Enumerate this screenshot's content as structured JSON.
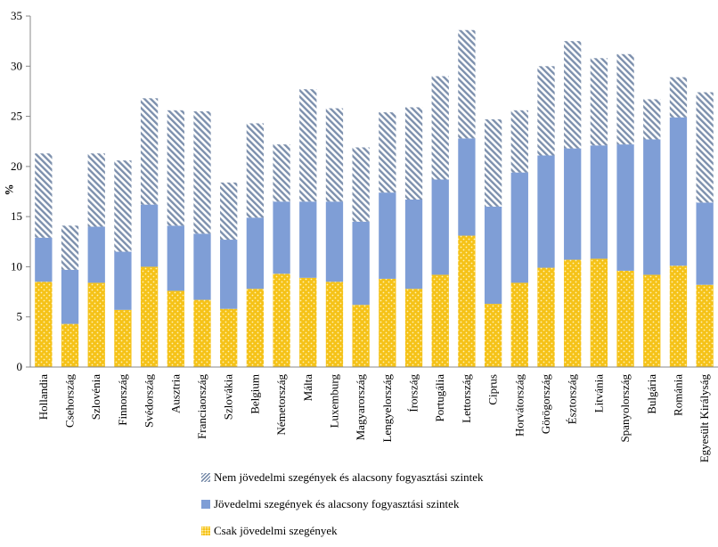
{
  "chart_data": {
    "type": "bar",
    "stacked": true,
    "title": "",
    "xlabel": "",
    "ylabel": "%",
    "ylim": [
      0,
      35
    ],
    "yticks": [
      0,
      5,
      10,
      15,
      20,
      25,
      30,
      35
    ],
    "grid": false,
    "legend_position": "bottom",
    "categories": [
      "Hollandia",
      "Csehország",
      "Szlovénia",
      "Finnország",
      "Svédország",
      "Ausztria",
      "Franciaország",
      "Szlovákia",
      "Belgium",
      "Németország",
      "Málta",
      "Luxemburg",
      "Magyarország",
      "Lengyelország",
      "Írország",
      "Portugália",
      "Lettország",
      "Ciprus",
      "Horvátország",
      "Görögország",
      "Észtország",
      "Litvánia",
      "Spanyolország",
      "Bulgária",
      "Románia",
      "Egyesült Királyság"
    ],
    "series": [
      {
        "name": "Csak jövedelmi szegények",
        "color": "#f5c218",
        "pattern": "dots",
        "values": [
          8.5,
          4.3,
          8.4,
          5.7,
          10.0,
          7.6,
          6.7,
          5.8,
          7.8,
          9.3,
          8.9,
          8.5,
          6.2,
          8.8,
          7.8,
          9.2,
          13.1,
          6.3,
          8.4,
          9.9,
          10.7,
          10.8,
          9.6,
          9.2,
          10.1,
          8.2
        ]
      },
      {
        "name": "Jövedelmi szegények és alacsony fogyasztási szintek",
        "color": "#7f9ed6",
        "pattern": "solid",
        "values": [
          4.4,
          5.4,
          5.6,
          5.8,
          6.2,
          6.5,
          6.6,
          6.9,
          7.1,
          7.2,
          7.6,
          8.0,
          8.3,
          8.6,
          8.9,
          9.5,
          9.7,
          9.7,
          11.0,
          11.2,
          11.1,
          11.3,
          12.6,
          13.5,
          14.8,
          8.2
        ]
      },
      {
        "name": "Nem jövedelmi szegények és alacsony fogyasztási szintek",
        "color": "#8a9bb5",
        "pattern": "hatch",
        "values": [
          8.4,
          4.4,
          7.3,
          9.1,
          10.6,
          11.5,
          12.2,
          5.7,
          9.4,
          5.7,
          11.2,
          9.3,
          7.4,
          8.0,
          9.2,
          10.3,
          10.8,
          8.7,
          6.2,
          8.9,
          10.7,
          8.7,
          9.0,
          4.0,
          4.0,
          11.0
        ]
      }
    ]
  }
}
